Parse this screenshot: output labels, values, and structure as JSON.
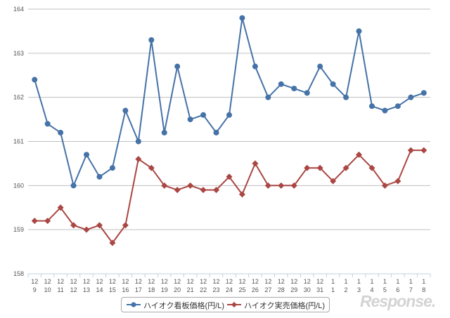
{
  "chart_data": {
    "type": "line",
    "categories": [
      [
        "12",
        "9"
      ],
      [
        "12",
        "10"
      ],
      [
        "12",
        "11"
      ],
      [
        "12",
        "12"
      ],
      [
        "12",
        "13"
      ],
      [
        "12",
        "14"
      ],
      [
        "12",
        "15"
      ],
      [
        "12",
        "16"
      ],
      [
        "12",
        "17"
      ],
      [
        "12",
        "18"
      ],
      [
        "12",
        "19"
      ],
      [
        "12",
        "20"
      ],
      [
        "12",
        "21"
      ],
      [
        "12",
        "22"
      ],
      [
        "12",
        "23"
      ],
      [
        "12",
        "24"
      ],
      [
        "12",
        "25"
      ],
      [
        "12",
        "26"
      ],
      [
        "12",
        "27"
      ],
      [
        "12",
        "28"
      ],
      [
        "12",
        "29"
      ],
      [
        "12",
        "30"
      ],
      [
        "12",
        "31"
      ],
      [
        "1",
        "1"
      ],
      [
        "1",
        "2"
      ],
      [
        "1",
        "3"
      ],
      [
        "1",
        "4"
      ],
      [
        "1",
        "5"
      ],
      [
        "1",
        "6"
      ],
      [
        "1",
        "7"
      ],
      [
        "1",
        "8"
      ]
    ],
    "series": [
      {
        "name": "ハイオク看板価格(円/L)",
        "color": "#4572a7",
        "marker": "circle",
        "values": [
          162.4,
          161.4,
          161.2,
          160.0,
          160.7,
          160.2,
          160.4,
          161.7,
          161.0,
          163.3,
          161.2,
          162.7,
          161.5,
          161.6,
          161.2,
          161.6,
          163.8,
          162.7,
          162.0,
          162.3,
          162.2,
          162.1,
          162.7,
          162.3,
          162.0,
          163.5,
          161.8,
          161.7,
          161.8,
          162.0,
          162.1
        ]
      },
      {
        "name": "ハイオク実売価格(円/L)",
        "color": "#aa4643",
        "marker": "diamond",
        "values": [
          159.2,
          159.2,
          159.5,
          159.1,
          159.0,
          159.1,
          158.7,
          159.1,
          160.6,
          160.4,
          160.0,
          159.9,
          160.0,
          159.9,
          159.9,
          160.2,
          159.8,
          160.5,
          160.0,
          160.0,
          160.0,
          160.4,
          160.4,
          160.1,
          160.4,
          160.7,
          160.4,
          160.0,
          160.1,
          160.8,
          160.8
        ]
      }
    ],
    "ylim": [
      158,
      164
    ],
    "yticks": [
      158,
      159,
      160,
      161,
      162,
      163,
      164
    ],
    "grid": true,
    "legend_position": "bottom"
  },
  "watermark": "Response."
}
